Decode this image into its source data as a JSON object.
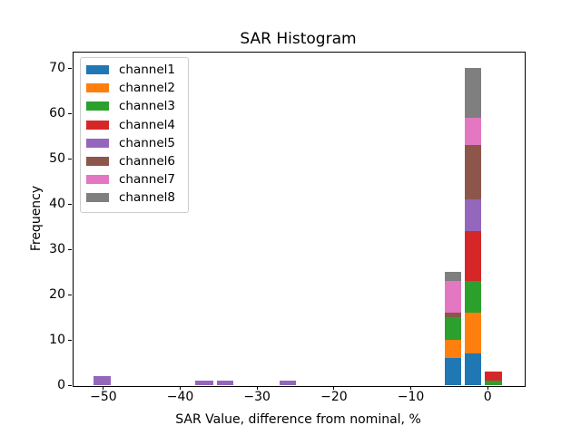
{
  "chart_data": {
    "type": "bar",
    "subtype": "stacked-histogram",
    "title": "SAR Histogram",
    "xlabel": "SAR Value, difference from nominal, %",
    "ylabel": "Frequency",
    "xlim": [
      -54.0,
      4.7
    ],
    "ylim": [
      0,
      73.6
    ],
    "x_ticks": [
      -50,
      -40,
      -30,
      -20,
      -10,
      0
    ],
    "y_ticks": [
      0,
      10,
      20,
      30,
      40,
      50,
      60,
      70
    ],
    "grid": false,
    "legend_location": "upper-left",
    "channels": [
      {
        "name": "channel1",
        "color": "#1f77b4"
      },
      {
        "name": "channel2",
        "color": "#ff7f0e"
      },
      {
        "name": "channel3",
        "color": "#2ca02c"
      },
      {
        "name": "channel4",
        "color": "#d62728"
      },
      {
        "name": "channel5",
        "color": "#9467bd"
      },
      {
        "name": "channel6",
        "color": "#8c564b"
      },
      {
        "name": "channel7",
        "color": "#e377c2"
      },
      {
        "name": "channel8",
        "color": "#7f7f7f"
      }
    ],
    "bars": [
      {
        "x_left": -51.3,
        "x_width": 2.25,
        "segments": [
          {
            "channel": "channel5",
            "value": 2
          }
        ]
      },
      {
        "x_left": -38.05,
        "x_width": 2.35,
        "segments": [
          {
            "channel": "channel5",
            "value": 1
          }
        ]
      },
      {
        "x_left": -35.2,
        "x_width": 2.15,
        "segments": [
          {
            "channel": "channel5",
            "value": 1
          }
        ]
      },
      {
        "x_left": -27.05,
        "x_width": 2.15,
        "segments": [
          {
            "channel": "channel5",
            "value": 1
          }
        ]
      },
      {
        "x_left": -5.58,
        "x_width": 2.16,
        "segments": [
          {
            "channel": "channel1",
            "value": 6
          },
          {
            "channel": "channel2",
            "value": 4
          },
          {
            "channel": "channel3",
            "value": 5
          },
          {
            "channel": "channel6",
            "value": 1
          },
          {
            "channel": "channel7",
            "value": 7
          },
          {
            "channel": "channel8",
            "value": 2
          }
        ]
      },
      {
        "x_left": -3.02,
        "x_width": 2.16,
        "segments": [
          {
            "channel": "channel1",
            "value": 7
          },
          {
            "channel": "channel2",
            "value": 9
          },
          {
            "channel": "channel3",
            "value": 7
          },
          {
            "channel": "channel4",
            "value": 11
          },
          {
            "channel": "channel5",
            "value": 7
          },
          {
            "channel": "channel6",
            "value": 12
          },
          {
            "channel": "channel7",
            "value": 6
          },
          {
            "channel": "channel8",
            "value": 11
          }
        ]
      },
      {
        "x_left": -0.35,
        "x_width": 2.17,
        "segments": [
          {
            "channel": "channel3",
            "value": 1
          },
          {
            "channel": "channel4",
            "value": 2
          }
        ]
      }
    ]
  }
}
